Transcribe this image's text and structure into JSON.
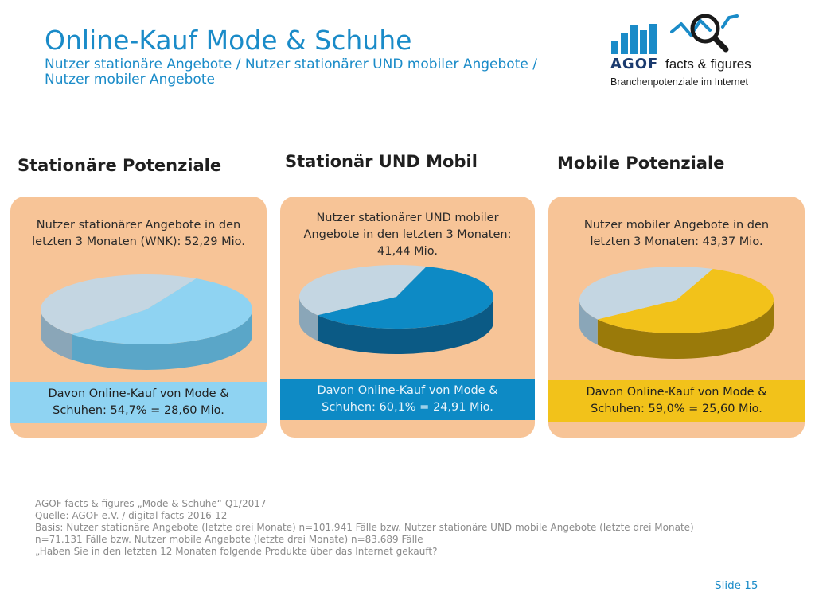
{
  "header": {
    "title": "Online-Kauf Mode & Schuhe",
    "subtitle_line1": "Nutzer stationäre Angebote / Nutzer stationärer UND mobiler Angebote /",
    "subtitle_line2": "Nutzer mobiler Angebote"
  },
  "logo": {
    "wordmark": "AGOF",
    "product": "facts & figures",
    "tagline": "Branchenpotenziale im Internet",
    "icon": "magnifier-chart-icon",
    "color": "#1a8bc8"
  },
  "panels": [
    {
      "heading": "Stationäre Potenziale",
      "text_line1": "Nutzer stationärer Angebote in den",
      "text_line2": "letzten 3 Monaten (WNK): 52,29 Mio.",
      "band_line1": "Davon Online-Kauf von Mode &",
      "band_line2": "Schuhen: 54,7% = 28,60 Mio."
    },
    {
      "heading": "Stationär UND Mobil",
      "text_line1": "Nutzer stationärer UND mobiler",
      "text_line2": "Angebote in den letzten 3 Monaten:",
      "text_line3": "41,44 Mio.",
      "band_line1": "Davon Online-Kauf von Mode &",
      "band_line2": "Schuhen: 60,1% = 24,91 Mio."
    },
    {
      "heading": "Mobile Potenziale",
      "text_line1": "Nutzer mobiler Angebote in den",
      "text_line2": "letzten 3 Monaten: 43,37 Mio.",
      "band_line1": "Davon Online-Kauf von Mode &",
      "band_line2": "Schuhen: 59,0% = 25,60 Mio."
    }
  ],
  "chart_data": [
    {
      "type": "pie",
      "values": [
        54.7,
        45.3
      ],
      "colors": [
        "#8fd3f2",
        "#c4d6e2"
      ],
      "side_colors": [
        "#5aa6c8",
        "#8aa6b8"
      ]
    },
    {
      "type": "pie",
      "values": [
        60.1,
        39.9
      ],
      "colors": [
        "#0d8ac5",
        "#c4d6e2"
      ],
      "side_colors": [
        "#0b5a85",
        "#8aa6b8"
      ]
    },
    {
      "type": "pie",
      "values": [
        59.0,
        41.0
      ],
      "colors": [
        "#f2c21a",
        "#c4d6e2"
      ],
      "side_colors": [
        "#9a7a0a",
        "#8aa6b8"
      ]
    }
  ],
  "footer": {
    "line1": "AGOF facts & figures „Mode & Schuhe“ Q1/2017",
    "line2": "Quelle: AGOF e.V. / digital facts 2016-12",
    "line3": "Basis: Nutzer stationäre Angebote (letzte drei Monate) n=101.941 Fälle bzw. Nutzer stationäre UND mobile Angebote (letzte drei Monate)",
    "line4": "n=71.131 Fälle bzw. Nutzer mobile Angebote (letzte drei Monate) n=83.689 Fälle",
    "line5": "„Haben Sie in den letzten 12 Monaten folgende Produkte über das Internet gekauft?"
  },
  "slide": {
    "label": "Slide 15"
  },
  "colors": {
    "accent": "#1a8bc8",
    "panel_bg": "#f7c497",
    "band_1": "#8fd3f2",
    "band_2": "#0d8ac5",
    "band_3": "#f2c21a"
  }
}
